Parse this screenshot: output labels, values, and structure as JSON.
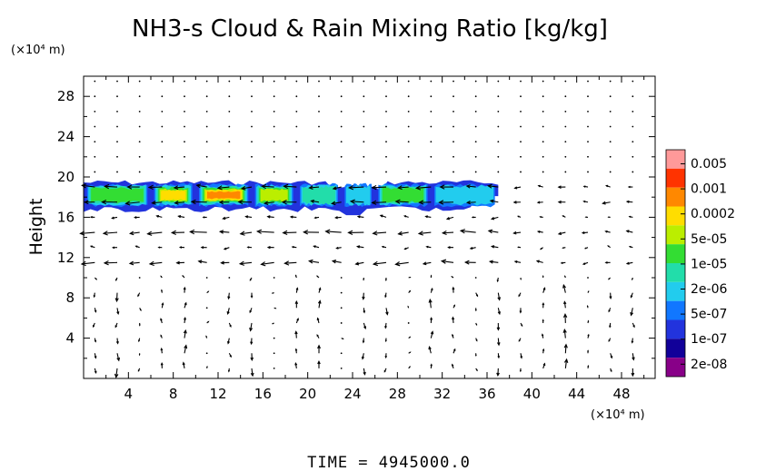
{
  "chart_data": {
    "type": "heatmap",
    "title": "NH3-s Cloud & Rain Mixing Ratio [kg/kg]",
    "xlabel": "",
    "ylabel": "Height",
    "x_unit": "(×10⁴ m)",
    "y_unit": "(×10⁴ m)",
    "xlim": [
      0,
      51
    ],
    "ylim": [
      0,
      30
    ],
    "x_ticks": [
      "4",
      "8",
      "12",
      "16",
      "20",
      "24",
      "28",
      "32",
      "36",
      "40",
      "44",
      "48"
    ],
    "y_ticks": [
      "4",
      "8",
      "12",
      "16",
      "20",
      "24",
      "28"
    ],
    "colorbar": {
      "labels": [
        "0.005",
        "0.001",
        "0.0002",
        "5e-05",
        "1e-05",
        "2e-06",
        "5e-07",
        "1e-07",
        "2e-08"
      ],
      "colors": [
        "#ff9999",
        "#ff3300",
        "#ff8800",
        "#ffdd00",
        "#bbee00",
        "#33dd33",
        "#22ddaa",
        "#22ccee",
        "#1177ff",
        "#2233dd",
        "#110099",
        "#880088"
      ]
    },
    "cloud_layer": {
      "x_range": [
        0,
        37
      ],
      "y_range": [
        16.5,
        19.7
      ],
      "segments": [
        {
          "x": [
            0,
            6
          ],
          "level": 5
        },
        {
          "x": [
            6,
            10
          ],
          "level": 3
        },
        {
          "x": [
            10,
            15
          ],
          "level": 2
        },
        {
          "x": [
            15,
            19
          ],
          "level": 4
        },
        {
          "x": [
            19,
            23
          ],
          "level": 6
        },
        {
          "x": [
            23,
            26
          ],
          "level": 7
        },
        {
          "x": [
            26,
            31
          ],
          "level": 5
        },
        {
          "x": [
            31,
            37
          ],
          "level": 7
        }
      ]
    },
    "wind_vectors": {
      "description": "wind arrows overlaid on grid",
      "strong_levels": [
        {
          "y": 17,
          "u_direction": "westward"
        },
        {
          "y": 14,
          "u_direction": "westward"
        },
        {
          "y": 12,
          "u_direction": "westward"
        }
      ]
    }
  },
  "footer": {
    "time_label": "TIME  =  4945000.0"
  }
}
